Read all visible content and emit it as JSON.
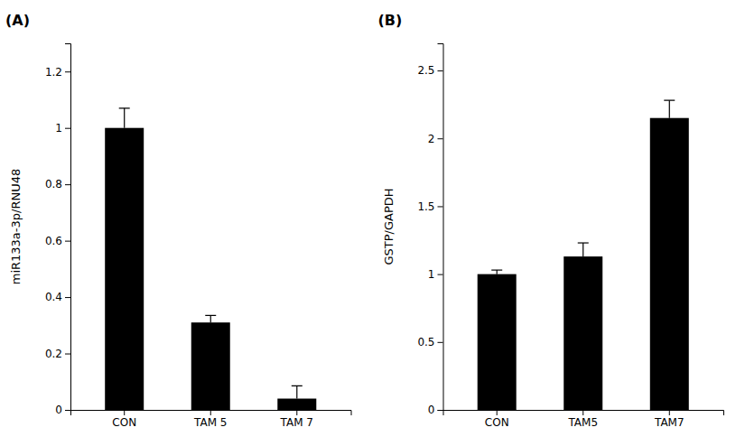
{
  "chart_data": [
    {
      "type": "bar",
      "title": "(A)",
      "ylabel": "miR133a-3p/RNU48",
      "categories": [
        "CON",
        "TAM 5",
        "TAM 7"
      ],
      "values": [
        1.0,
        0.31,
        0.04
      ],
      "errors": [
        0.07,
        0.025,
        0.045
      ],
      "color": "#000000",
      "ylim": [
        0,
        1.3
      ],
      "yticks": [
        0,
        0.2,
        0.4,
        0.6,
        0.8,
        1,
        1.2
      ]
    },
    {
      "type": "bar",
      "title": "(B)",
      "ylabel": "GSTP/GAPDH",
      "categories": [
        "CON",
        "TAM5",
        "TAM7"
      ],
      "values": [
        1.0,
        1.13,
        2.15
      ],
      "errors": [
        0.03,
        0.1,
        0.13
      ],
      "color": "#000000",
      "ylim": [
        0,
        2.7
      ],
      "yticks": [
        0,
        0.5,
        1,
        1.5,
        2,
        2.5
      ]
    }
  ]
}
